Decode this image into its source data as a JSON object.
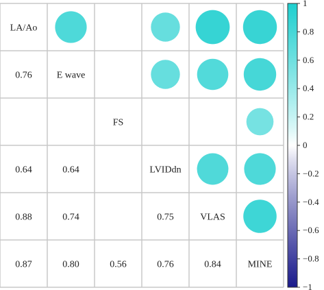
{
  "chart_data": {
    "type": "heatmap",
    "variables": [
      "LA/Ao",
      "E wave",
      "FS",
      "LVIDdn",
      "VLAS",
      "MINE"
    ],
    "matrix": [
      [
        1.0,
        0.76,
        null,
        0.64,
        0.88,
        0.87
      ],
      [
        0.76,
        1.0,
        null,
        0.64,
        0.74,
        0.8
      ],
      [
        null,
        null,
        1.0,
        null,
        null,
        0.56
      ],
      [
        0.64,
        0.64,
        null,
        1.0,
        0.75,
        0.76
      ],
      [
        0.88,
        0.74,
        null,
        0.75,
        1.0,
        0.84
      ],
      [
        0.87,
        0.8,
        0.56,
        0.76,
        0.84,
        1.0
      ]
    ],
    "upper": "circle",
    "lower": "number",
    "diagonal": "label",
    "legend": {
      "position": "right",
      "range": [
        -1,
        1
      ],
      "ticks": [
        "1",
        "0.8",
        "0.6",
        "0.4",
        "0.2",
        "0",
        "−0.2",
        "−0.4",
        "−0.6",
        "−0.8",
        "−1"
      ]
    },
    "colors": {
      "positive": "#1fcfcf",
      "negative": "#1a1a8c",
      "neutral": "#ffffff",
      "grid": "#c8c8c8"
    }
  }
}
